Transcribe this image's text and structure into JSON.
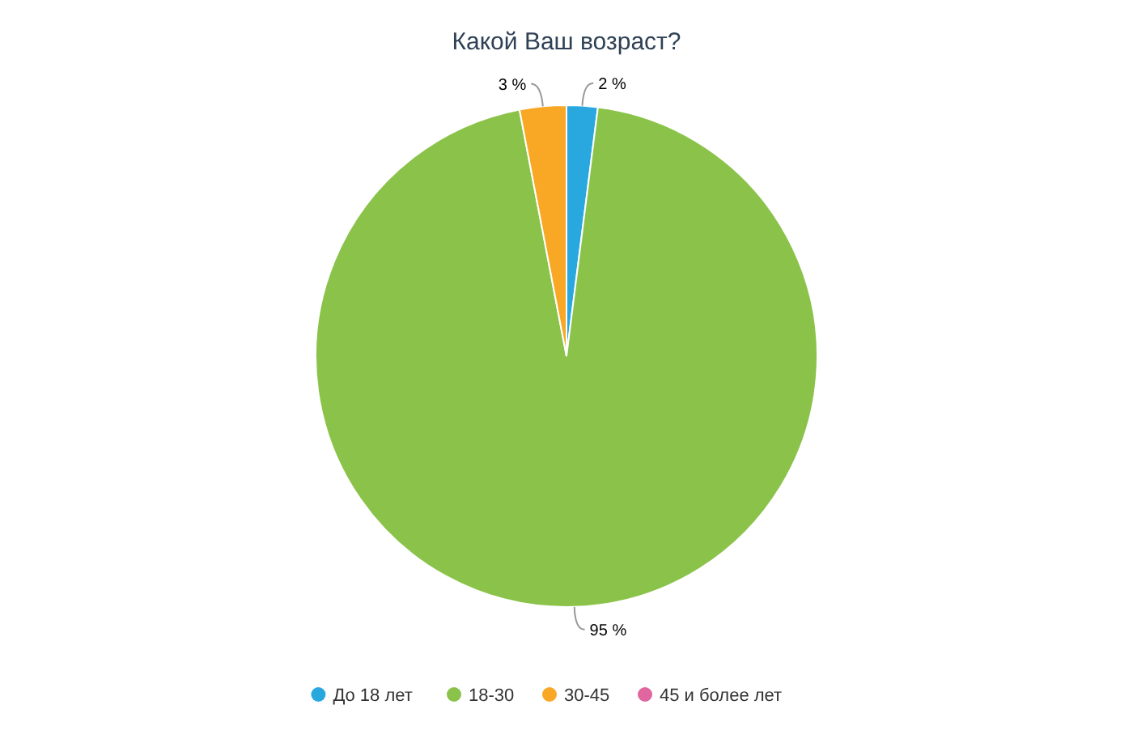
{
  "chart_data": {
    "type": "pie",
    "title": "Какой Ваш возраст?",
    "categories": [
      "До 18 лет",
      "18-30",
      "30-45",
      "45 и более лет"
    ],
    "values": [
      2,
      95,
      3,
      0
    ],
    "colors": [
      "#29a8e0",
      "#8bc34a",
      "#f9a825",
      "#e066a0"
    ],
    "value_labels": [
      "2 %",
      "95 %",
      "3 %",
      null
    ],
    "legend": "bottom"
  }
}
